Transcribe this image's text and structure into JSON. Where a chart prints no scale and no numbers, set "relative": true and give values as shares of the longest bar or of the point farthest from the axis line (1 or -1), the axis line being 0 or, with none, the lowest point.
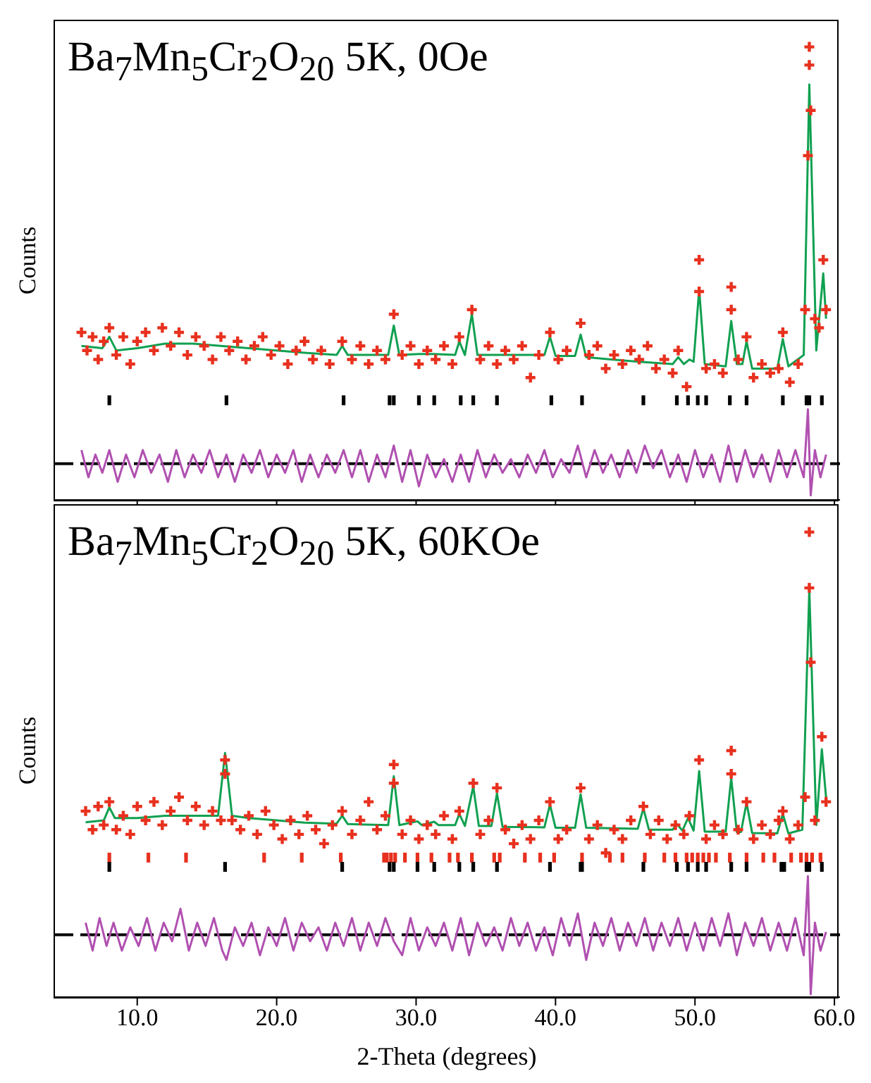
{
  "chart_data": [
    {
      "type": "scatter",
      "title": "Ba$_{7}$Mn$_{5}$Cr$_{2}$O$_{20}$ 5K, 0Oe",
      "ylabel": "Counts",
      "relative": true,
      "legend": false,
      "grid": false,
      "tick_labels": false,
      "xlim": [
        4,
        60.4
      ],
      "xticks": [
        10,
        20,
        30,
        40,
        50,
        60
      ],
      "ref_lines": [
        {
          "axis": "y",
          "value": 0.08,
          "color": "#000000",
          "line_style": "dashed"
        }
      ],
      "series": [
        {
          "marker": "cross",
          "color": "#e8301e",
          "x": [
            6.0,
            6.4,
            6.8,
            7.2,
            7.6,
            8.0,
            8.5,
            9.0,
            9.5,
            10.0,
            10.6,
            11.2,
            11.8,
            12.4,
            13.0,
            13.6,
            14.2,
            14.8,
            15.4,
            16.0,
            16.6,
            17.2,
            17.8,
            18.4,
            19.0,
            19.6,
            20.2,
            20.8,
            21.4,
            22.0,
            22.6,
            23.2,
            23.8,
            24.7,
            25.4,
            26.0,
            26.6,
            27.2,
            27.8,
            28.4,
            29.0,
            29.6,
            30.2,
            30.8,
            31.4,
            32.0,
            32.6,
            33.1,
            34.0,
            34.6,
            35.2,
            35.8,
            36.4,
            37.0,
            37.6,
            38.2,
            38.8,
            39.6,
            40.2,
            40.8,
            41.8,
            42.4,
            43.0,
            43.6,
            44.2,
            44.8,
            45.4,
            46.0,
            46.6,
            47.2,
            47.8,
            48.4,
            48.8,
            49.4,
            50.3,
            50.3,
            50.8,
            51.4,
            52.0,
            52.6,
            52.6,
            53.1,
            53.7,
            54.2,
            54.8,
            55.4,
            56.0,
            56.3,
            56.8,
            57.4,
            57.9,
            58.1,
            58.2,
            58.2,
            58.3,
            58.6,
            58.9,
            59.2,
            59.4
          ],
          "values": [
            0.37,
            0.33,
            0.36,
            0.31,
            0.35,
            0.38,
            0.32,
            0.36,
            0.3,
            0.35,
            0.37,
            0.33,
            0.38,
            0.34,
            0.37,
            0.32,
            0.36,
            0.34,
            0.31,
            0.36,
            0.33,
            0.35,
            0.31,
            0.34,
            0.36,
            0.32,
            0.34,
            0.3,
            0.33,
            0.35,
            0.31,
            0.33,
            0.3,
            0.35,
            0.31,
            0.34,
            0.3,
            0.33,
            0.31,
            0.41,
            0.32,
            0.34,
            0.3,
            0.33,
            0.31,
            0.34,
            0.3,
            0.36,
            0.42,
            0.31,
            0.34,
            0.3,
            0.33,
            0.31,
            0.34,
            0.27,
            0.32,
            0.37,
            0.31,
            0.33,
            0.39,
            0.32,
            0.34,
            0.29,
            0.32,
            0.3,
            0.33,
            0.31,
            0.34,
            0.29,
            0.31,
            0.28,
            0.33,
            0.25,
            0.46,
            0.53,
            0.29,
            0.3,
            0.28,
            0.47,
            0.42,
            0.31,
            0.36,
            0.27,
            0.3,
            0.28,
            0.29,
            0.37,
            0.26,
            0.3,
            0.42,
            0.76,
            1.0,
            0.96,
            0.86,
            0.4,
            0.38,
            0.53,
            0.42
          ]
        },
        {
          "type": "line",
          "marker": "none",
          "color": "#10a050",
          "x": [
            6.0,
            7.5,
            8.0,
            8.5,
            10,
            12,
            14,
            16,
            18,
            20,
            22,
            24.3,
            24.7,
            25.1,
            28.0,
            28.4,
            28.8,
            30.2,
            31.3,
            32.8,
            33.1,
            33.5,
            34.0,
            34.4,
            36,
            39.2,
            39.6,
            40.0,
            41.4,
            41.8,
            42.2,
            44,
            46,
            48.4,
            48.8,
            49.2,
            49.6,
            49.9,
            50.3,
            50.7,
            52.2,
            52.6,
            53.0,
            53.4,
            53.7,
            54.1,
            55.9,
            56.3,
            56.7,
            57.8,
            58.2,
            58.7,
            59.2,
            59.4
          ],
          "values": [
            0.34,
            0.335,
            0.36,
            0.33,
            0.335,
            0.345,
            0.345,
            0.34,
            0.335,
            0.33,
            0.325,
            0.32,
            0.34,
            0.32,
            0.32,
            0.385,
            0.32,
            0.322,
            0.322,
            0.32,
            0.35,
            0.32,
            0.41,
            0.32,
            0.32,
            0.32,
            0.36,
            0.318,
            0.318,
            0.365,
            0.315,
            0.31,
            0.305,
            0.3,
            0.315,
            0.3,
            0.31,
            0.305,
            0.465,
            0.3,
            0.295,
            0.395,
            0.3,
            0.3,
            0.35,
            0.29,
            0.29,
            0.355,
            0.295,
            0.32,
            0.917,
            0.33,
            0.5,
            0.4
          ]
        },
        {
          "marker": "square",
          "color": "#000000",
          "x": [
            8.0,
            16.4,
            24.8,
            28.1,
            28.4,
            30.2,
            31.3,
            33.2,
            34.1,
            35.8,
            39.7,
            41.9,
            46.3,
            48.7,
            49.5,
            50.2,
            50.8,
            52.5,
            53.7,
            56.3,
            58.0,
            58.2,
            59.1
          ],
          "values": [
            0.22,
            0.22,
            0.22,
            0.22,
            0.22,
            0.22,
            0.22,
            0.22,
            0.22,
            0.22,
            0.22,
            0.22,
            0.22,
            0.22,
            0.22,
            0.22,
            0.22,
            0.22,
            0.22,
            0.22,
            0.22,
            0.22,
            0.22
          ]
        },
        {
          "type": "line",
          "marker": "none",
          "color": "#b050b0",
          "x": [
            6.0,
            6.5,
            7.0,
            7.5,
            8.0,
            8.6,
            9.2,
            9.8,
            10.4,
            11.0,
            11.6,
            12.2,
            12.8,
            13.4,
            14.0,
            14.6,
            15.2,
            15.8,
            16.4,
            17.0,
            17.6,
            18.2,
            18.8,
            19.4,
            20.0,
            20.6,
            21.2,
            21.8,
            22.4,
            23.0,
            23.6,
            24.2,
            24.8,
            25.4,
            26.0,
            26.6,
            27.2,
            27.8,
            28.4,
            29.0,
            29.6,
            30.2,
            30.8,
            31.4,
            32.0,
            32.6,
            33.2,
            33.8,
            34.4,
            35.0,
            35.6,
            36.2,
            36.8,
            37.4,
            38.0,
            38.6,
            39.2,
            39.8,
            40.4,
            41.0,
            41.6,
            42.2,
            42.8,
            43.4,
            44.0,
            44.6,
            45.2,
            45.8,
            46.4,
            47.0,
            47.6,
            48.2,
            48.8,
            49.4,
            50.0,
            50.6,
            51.2,
            51.8,
            52.4,
            53.0,
            53.6,
            54.2,
            54.8,
            55.4,
            56.0,
            56.6,
            57.2,
            57.8,
            58.1,
            58.3,
            58.6,
            59.0,
            59.4
          ],
          "values": [
            0.11,
            0.05,
            0.1,
            0.06,
            0.11,
            0.04,
            0.1,
            0.05,
            0.11,
            0.06,
            0.1,
            0.04,
            0.11,
            0.05,
            0.1,
            0.06,
            0.11,
            0.05,
            0.1,
            0.04,
            0.1,
            0.06,
            0.11,
            0.05,
            0.1,
            0.06,
            0.11,
            0.04,
            0.1,
            0.05,
            0.1,
            0.06,
            0.11,
            0.05,
            0.11,
            0.04,
            0.1,
            0.05,
            0.12,
            0.04,
            0.11,
            0.03,
            0.1,
            0.05,
            0.09,
            0.04,
            0.1,
            0.04,
            0.11,
            0.05,
            0.1,
            0.06,
            0.09,
            0.05,
            0.1,
            0.06,
            0.11,
            0.05,
            0.09,
            0.06,
            0.12,
            0.05,
            0.11,
            0.06,
            0.1,
            0.05,
            0.11,
            0.06,
            0.12,
            0.07,
            0.11,
            0.05,
            0.1,
            0.04,
            0.11,
            0.05,
            0.1,
            0.04,
            0.12,
            0.04,
            0.11,
            0.05,
            0.1,
            0.04,
            0.11,
            0.05,
            0.11,
            0.05,
            0.2,
            0.01,
            0.11,
            0.05,
            0.1
          ]
        }
      ]
    },
    {
      "type": "scatter",
      "title": "Ba$_{7}$Mn$_{5}$Cr$_{2}$O$_{20}$ 5K, 60KOe",
      "ylabel": "Counts",
      "xlabel": "2-Theta (degrees)",
      "relative": true,
      "legend": false,
      "grid": false,
      "xlim": [
        4,
        60.4
      ],
      "xticks": [
        {
          "value": 10,
          "label": "10.0"
        },
        {
          "value": 20,
          "label": "20.0"
        },
        {
          "value": 30,
          "label": "30.0"
        },
        {
          "value": 40,
          "label": "40.0"
        },
        {
          "value": 50,
          "label": "50.0"
        },
        {
          "value": 60,
          "label": "60.0"
        }
      ],
      "ref_lines": [
        {
          "axis": "y",
          "value": 0.134,
          "color": "#000000",
          "line_style": "dashed"
        }
      ],
      "series": [
        {
          "marker": "cross",
          "color": "#e8301e",
          "x": [
            6.3,
            6.8,
            7.2,
            7.6,
            8.0,
            8.5,
            9.0,
            9.5,
            10.0,
            10.6,
            11.2,
            11.8,
            12.4,
            13.0,
            13.6,
            14.2,
            14.8,
            15.4,
            16.0,
            16.3,
            16.3,
            16.8,
            17.4,
            18.0,
            18.6,
            19.2,
            19.8,
            20.4,
            21.0,
            21.6,
            22.2,
            22.8,
            23.4,
            24.0,
            24.7,
            25.4,
            26.0,
            26.6,
            27.2,
            27.8,
            28.4,
            28.4,
            29.0,
            29.6,
            30.2,
            30.8,
            31.4,
            32.0,
            32.6,
            33.1,
            34.1,
            34.6,
            35.2,
            35.8,
            36.4,
            37.0,
            37.6,
            38.2,
            38.8,
            39.6,
            40.2,
            40.8,
            41.8,
            42.4,
            43.0,
            43.6,
            44.2,
            44.8,
            45.4,
            46.3,
            46.8,
            47.4,
            48.0,
            48.6,
            49.2,
            49.6,
            50.3,
            50.8,
            51.4,
            52.0,
            52.6,
            52.6,
            53.1,
            53.7,
            54.2,
            54.8,
            55.4,
            56.0,
            56.3,
            56.8,
            57.4,
            57.9,
            58.2,
            58.2,
            58.3,
            58.6,
            59.1,
            59.4
          ],
          "values": [
            0.4,
            0.36,
            0.41,
            0.37,
            0.42,
            0.36,
            0.39,
            0.35,
            0.41,
            0.38,
            0.42,
            0.37,
            0.4,
            0.43,
            0.38,
            0.41,
            0.37,
            0.4,
            0.38,
            0.51,
            0.48,
            0.38,
            0.36,
            0.39,
            0.35,
            0.4,
            0.37,
            0.34,
            0.38,
            0.35,
            0.39,
            0.36,
            0.33,
            0.37,
            0.4,
            0.35,
            0.38,
            0.42,
            0.36,
            0.39,
            0.5,
            0.46,
            0.35,
            0.38,
            0.34,
            0.37,
            0.35,
            0.39,
            0.34,
            0.4,
            0.46,
            0.35,
            0.38,
            0.45,
            0.36,
            0.33,
            0.37,
            0.34,
            0.38,
            0.42,
            0.34,
            0.36,
            0.45,
            0.34,
            0.37,
            0.31,
            0.36,
            0.34,
            0.38,
            0.41,
            0.35,
            0.38,
            0.34,
            0.37,
            0.35,
            0.39,
            0.51,
            0.34,
            0.37,
            0.35,
            0.53,
            0.48,
            0.36,
            0.42,
            0.34,
            0.37,
            0.35,
            0.38,
            0.4,
            0.34,
            0.37,
            0.43,
            1.0,
            0.88,
            0.72,
            0.38,
            0.56,
            0.42
          ]
        },
        {
          "type": "line",
          "marker": "none",
          "color": "#10a050",
          "x": [
            6.3,
            7.6,
            8.0,
            8.4,
            10,
            12,
            14,
            15.8,
            16.3,
            16.8,
            18,
            20,
            22,
            24.3,
            24.7,
            25.1,
            28.0,
            28.4,
            28.8,
            30.1,
            30.4,
            31.3,
            31.6,
            32.8,
            33.1,
            33.5,
            34.1,
            34.5,
            35.4,
            35.8,
            36.2,
            39.2,
            39.6,
            40.0,
            41.4,
            41.8,
            42.2,
            45.9,
            46.3,
            46.7,
            48.4,
            48.7,
            49.1,
            49.5,
            49.9,
            50.3,
            50.7,
            52.2,
            52.6,
            53.0,
            53.3,
            53.7,
            54.1,
            55.9,
            56.3,
            56.7,
            57.7,
            58.2,
            58.7,
            59.1,
            59.4
          ],
          "values": [
            0.376,
            0.38,
            0.408,
            0.385,
            0.385,
            0.39,
            0.39,
            0.39,
            0.525,
            0.39,
            0.385,
            0.38,
            0.375,
            0.373,
            0.39,
            0.372,
            0.37,
            0.475,
            0.37,
            0.378,
            0.37,
            0.377,
            0.37,
            0.37,
            0.394,
            0.368,
            0.453,
            0.368,
            0.368,
            0.438,
            0.366,
            0.365,
            0.414,
            0.364,
            0.364,
            0.436,
            0.364,
            0.362,
            0.406,
            0.36,
            0.36,
            0.372,
            0.358,
            0.385,
            0.358,
            0.486,
            0.356,
            0.356,
            0.471,
            0.355,
            0.355,
            0.418,
            0.353,
            0.352,
            0.394,
            0.352,
            0.36,
            0.877,
            0.37,
            0.533,
            0.43
          ]
        },
        {
          "marker": "square",
          "color": "#e8301e",
          "x": [
            8.0,
            10.8,
            13.5,
            19.1,
            21.8,
            24.6,
            27.7,
            27.9,
            28.2,
            28.5,
            29.2,
            30.1,
            31.1,
            32.4,
            33.0,
            34.0,
            35.6,
            36.0,
            37.8,
            38.9,
            39.9,
            41.9,
            43.9,
            44.8,
            46.4,
            47.8,
            48.6,
            49.4,
            49.8,
            50.2,
            50.6,
            51.0,
            51.5,
            52.5,
            53.7,
            54.9,
            55.7,
            56.9,
            57.6,
            58.0,
            58.4,
            59.0
          ],
          "values": [
            0.3,
            0.3,
            0.3,
            0.3,
            0.3,
            0.3,
            0.3,
            0.3,
            0.3,
            0.3,
            0.3,
            0.3,
            0.3,
            0.3,
            0.3,
            0.3,
            0.3,
            0.3,
            0.3,
            0.3,
            0.3,
            0.3,
            0.3,
            0.3,
            0.3,
            0.3,
            0.3,
            0.3,
            0.3,
            0.3,
            0.3,
            0.3,
            0.3,
            0.3,
            0.3,
            0.3,
            0.3,
            0.3,
            0.3,
            0.3,
            0.3,
            0.3
          ]
        },
        {
          "marker": "square",
          "color": "#000000",
          "x": [
            8.0,
            16.3,
            24.7,
            28.1,
            28.4,
            30.1,
            31.3,
            33.1,
            34.1,
            35.8,
            39.6,
            41.8,
            41.9,
            46.3,
            48.7,
            49.5,
            50.2,
            50.8,
            52.6,
            53.7,
            56.2,
            56.4,
            58.0,
            58.2,
            59.1
          ],
          "values": [
            0.28,
            0.28,
            0.28,
            0.28,
            0.28,
            0.28,
            0.28,
            0.28,
            0.28,
            0.28,
            0.28,
            0.28,
            0.28,
            0.28,
            0.28,
            0.28,
            0.28,
            0.28,
            0.28,
            0.28,
            0.28,
            0.28,
            0.28,
            0.28,
            0.28
          ]
        },
        {
          "type": "line",
          "marker": "none",
          "color": "#b050b0",
          "x": [
            6.3,
            6.8,
            7.3,
            7.8,
            8.3,
            8.9,
            9.5,
            10.1,
            10.7,
            11.3,
            11.9,
            12.5,
            13.1,
            13.7,
            14.3,
            14.9,
            15.5,
            16.1,
            16.4,
            17.0,
            17.6,
            18.2,
            18.8,
            19.4,
            20.0,
            20.6,
            21.2,
            21.8,
            22.4,
            23.0,
            23.6,
            24.2,
            24.8,
            25.4,
            26.0,
            26.6,
            27.2,
            27.8,
            28.4,
            29.0,
            29.6,
            30.2,
            30.8,
            31.4,
            32.0,
            32.6,
            33.2,
            33.8,
            34.4,
            35.0,
            35.6,
            36.2,
            36.8,
            37.4,
            38.0,
            38.6,
            39.2,
            39.8,
            40.4,
            41.0,
            41.6,
            42.2,
            42.8,
            43.4,
            44.0,
            44.6,
            45.2,
            45.8,
            46.4,
            47.0,
            47.6,
            48.2,
            48.8,
            49.4,
            50.0,
            50.6,
            51.2,
            51.8,
            52.4,
            53.0,
            53.6,
            54.2,
            54.8,
            55.4,
            56.0,
            56.6,
            57.2,
            57.8,
            58.1,
            58.3,
            58.6,
            59.0,
            59.4
          ],
          "values": [
            0.16,
            0.1,
            0.17,
            0.11,
            0.16,
            0.1,
            0.15,
            0.11,
            0.17,
            0.1,
            0.16,
            0.12,
            0.19,
            0.1,
            0.16,
            0.11,
            0.17,
            0.1,
            0.08,
            0.15,
            0.11,
            0.16,
            0.09,
            0.15,
            0.11,
            0.17,
            0.1,
            0.16,
            0.12,
            0.15,
            0.1,
            0.16,
            0.11,
            0.17,
            0.1,
            0.16,
            0.11,
            0.17,
            0.12,
            0.09,
            0.17,
            0.1,
            0.15,
            0.11,
            0.16,
            0.1,
            0.17,
            0.09,
            0.16,
            0.11,
            0.15,
            0.1,
            0.17,
            0.11,
            0.16,
            0.1,
            0.15,
            0.09,
            0.17,
            0.11,
            0.18,
            0.08,
            0.16,
            0.11,
            0.17,
            0.1,
            0.16,
            0.11,
            0.17,
            0.1,
            0.16,
            0.11,
            0.17,
            0.1,
            0.16,
            0.1,
            0.17,
            0.11,
            0.18,
            0.09,
            0.16,
            0.11,
            0.17,
            0.1,
            0.16,
            0.1,
            0.17,
            0.09,
            0.26,
            0.006,
            0.16,
            0.1,
            0.14
          ]
        }
      ]
    }
  ]
}
